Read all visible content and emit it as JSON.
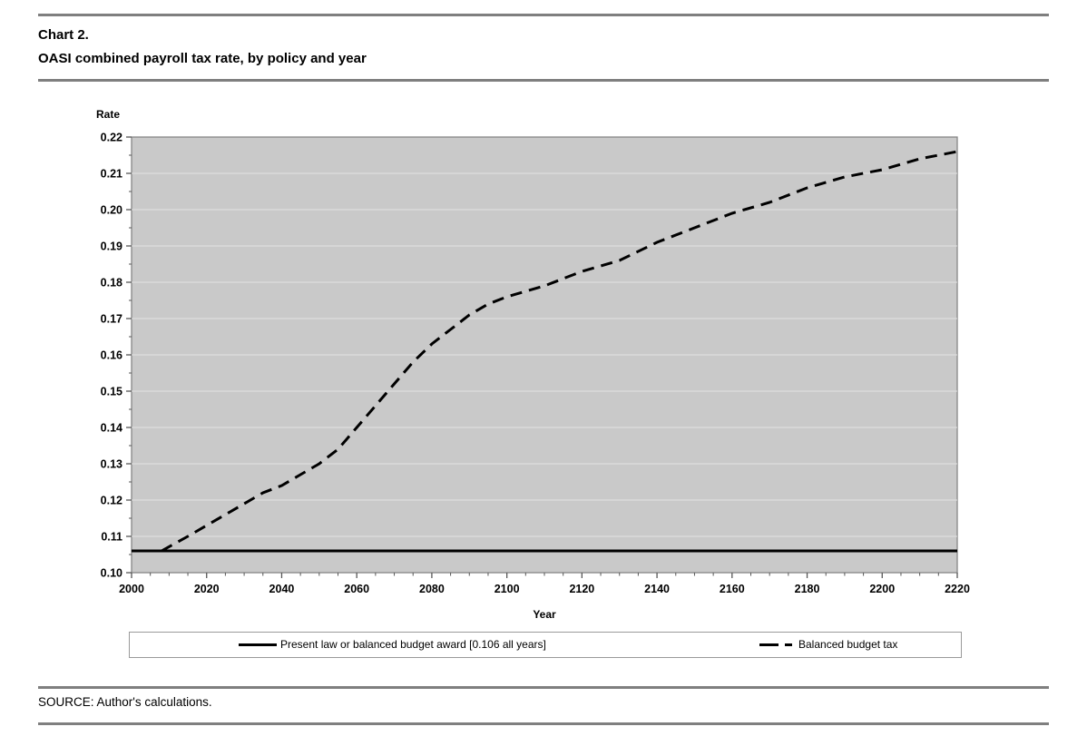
{
  "page": {
    "chart_label": "Chart 2.",
    "chart_title": "OASI combined payroll tax rate, by policy and year",
    "source": "SOURCE: Author's calculations."
  },
  "chart_data": {
    "type": "line",
    "title": "Chart 2. OASI combined payroll tax rate, by policy and year",
    "xlabel": "Year",
    "ylabel": "Rate",
    "xlim": [
      2000,
      2220
    ],
    "ylim": [
      0.1,
      0.22
    ],
    "x_tick_values": [
      2000,
      2020,
      2040,
      2060,
      2080,
      2100,
      2120,
      2140,
      2160,
      2180,
      2200,
      2220
    ],
    "x_tick_labels": [
      "2000",
      "2020",
      "2040",
      "2060",
      "2080",
      "2100",
      "2120",
      "2140",
      "2160",
      "2180",
      "2200",
      "2220"
    ],
    "x_minor_step": 5,
    "y_tick_values": [
      0.22,
      0.21,
      0.2,
      0.19,
      0.18,
      0.17,
      0.16,
      0.15,
      0.14,
      0.13,
      0.12,
      0.11,
      0.1
    ],
    "y_tick_labels": [
      "0.22",
      "0.21",
      "0.20",
      "0.19",
      "0.18",
      "0.17",
      "0.16",
      "0.15",
      "0.14",
      "0.13",
      "0.12",
      "0.11",
      "0.10"
    ],
    "y_minor_step": 0.005,
    "grid": "horizontal major gridlines only",
    "legend_position": "boxed, below chart",
    "colors": {
      "plot_bg": "#c9c9c9",
      "grid": "#e2e2e2",
      "plot_border": "#858585",
      "tick": "#565656",
      "line": "#000000"
    },
    "series": [
      {
        "name": "Present law or balanced budget award [0.106 all years]",
        "style": "solid",
        "points": [
          [
            2000,
            0.106
          ],
          [
            2220,
            0.106
          ]
        ]
      },
      {
        "name": "Balanced budget tax",
        "style": "dashed",
        "points": [
          [
            2008,
            0.106
          ],
          [
            2015,
            0.11
          ],
          [
            2020,
            0.113
          ],
          [
            2025,
            0.116
          ],
          [
            2030,
            0.119
          ],
          [
            2035,
            0.122
          ],
          [
            2040,
            0.124
          ],
          [
            2045,
            0.127
          ],
          [
            2050,
            0.13
          ],
          [
            2055,
            0.134
          ],
          [
            2060,
            0.14
          ],
          [
            2065,
            0.146
          ],
          [
            2070,
            0.152
          ],
          [
            2075,
            0.158
          ],
          [
            2080,
            0.163
          ],
          [
            2085,
            0.167
          ],
          [
            2090,
            0.171
          ],
          [
            2095,
            0.174
          ],
          [
            2100,
            0.176
          ],
          [
            2110,
            0.179
          ],
          [
            2120,
            0.183
          ],
          [
            2130,
            0.186
          ],
          [
            2140,
            0.191
          ],
          [
            2150,
            0.195
          ],
          [
            2160,
            0.199
          ],
          [
            2170,
            0.202
          ],
          [
            2180,
            0.206
          ],
          [
            2190,
            0.209
          ],
          [
            2200,
            0.211
          ],
          [
            2210,
            0.214
          ],
          [
            2220,
            0.216
          ]
        ]
      }
    ]
  }
}
